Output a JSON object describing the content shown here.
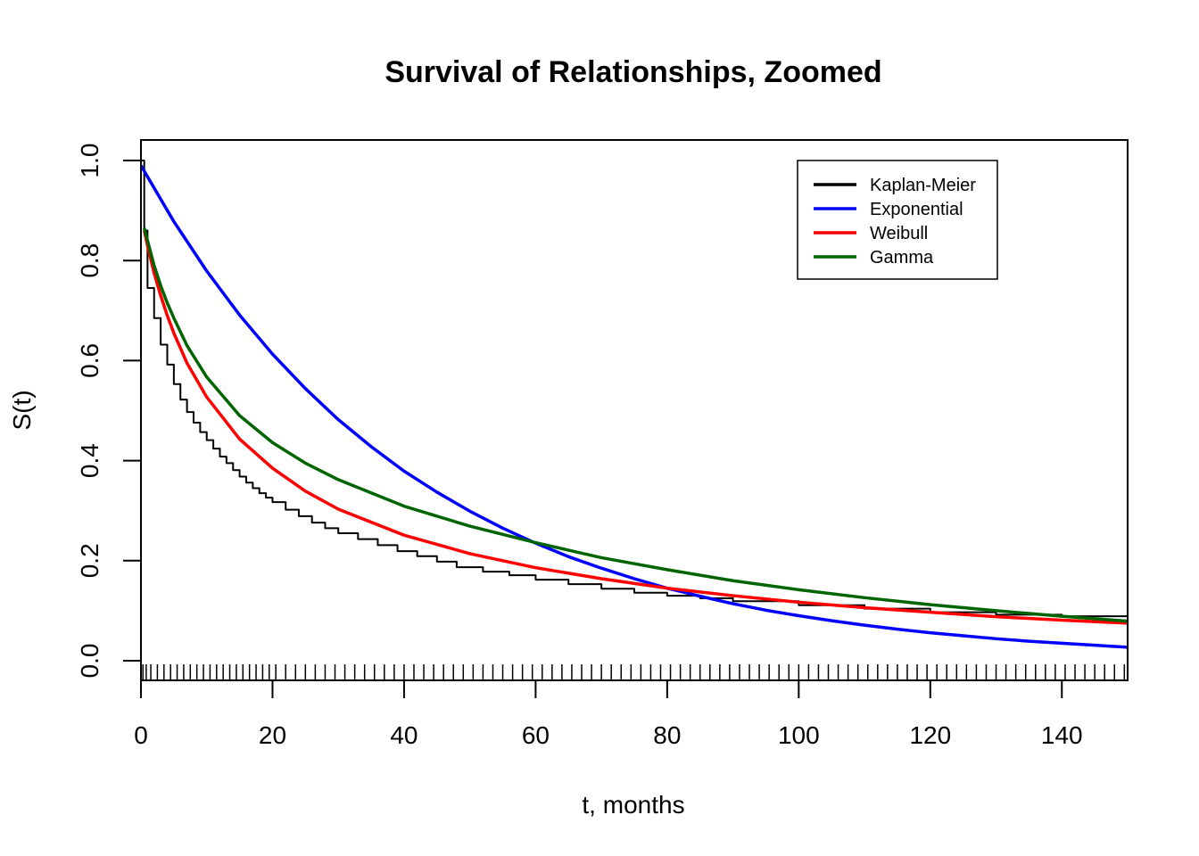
{
  "chart_data": {
    "type": "line",
    "title": "Survival of Relationships, Zoomed",
    "xlabel": "t, months",
    "ylabel": "S(t)",
    "xlim": [
      0,
      150
    ],
    "ylim": [
      0,
      1.0
    ],
    "x_ticks": [
      0,
      20,
      40,
      60,
      80,
      100,
      120,
      140
    ],
    "y_ticks": [
      0.0,
      0.2,
      0.4,
      0.6,
      0.8,
      1.0
    ],
    "x_tick_labels": [
      "0",
      "20",
      "40",
      "60",
      "80",
      "100",
      "120",
      "140"
    ],
    "y_tick_labels": [
      "0.0",
      "0.2",
      "0.4",
      "0.6",
      "0.8",
      "1.0"
    ],
    "grid": false,
    "legend_position": "top-right",
    "rug": true,
    "series": [
      {
        "name": "Kaplan-Meier",
        "color": "#000000",
        "style": "step",
        "x": [
          0,
          0.5,
          1,
          2,
          3,
          4,
          5,
          6,
          7,
          8,
          9,
          10,
          11,
          12,
          13,
          14,
          15,
          16,
          17,
          18,
          19,
          20,
          22,
          24,
          26,
          28,
          30,
          33,
          36,
          39,
          42,
          45,
          48,
          52,
          56,
          60,
          65,
          70,
          75,
          80,
          85,
          90,
          100,
          110,
          120,
          130,
          140,
          150
        ],
        "y": [
          1.0,
          0.86,
          0.745,
          0.685,
          0.632,
          0.592,
          0.553,
          0.522,
          0.497,
          0.476,
          0.457,
          0.441,
          0.424,
          0.408,
          0.395,
          0.381,
          0.368,
          0.356,
          0.345,
          0.335,
          0.326,
          0.317,
          0.302,
          0.289,
          0.276,
          0.265,
          0.255,
          0.243,
          0.231,
          0.219,
          0.209,
          0.198,
          0.187,
          0.178,
          0.171,
          0.162,
          0.153,
          0.144,
          0.136,
          0.13,
          0.125,
          0.119,
          0.111,
          0.104,
          0.097,
          0.092,
          0.089,
          0.087
        ]
      },
      {
        "name": "Exponential",
        "color": "#0000ff",
        "style": "line",
        "x": [
          0,
          5,
          10,
          15,
          20,
          25,
          30,
          35,
          40,
          45,
          50,
          55,
          60,
          65,
          70,
          75,
          80,
          85,
          90,
          95,
          100,
          105,
          110,
          115,
          120,
          125,
          130,
          135,
          140,
          145,
          150
        ],
        "y": [
          0.99,
          0.878,
          0.779,
          0.691,
          0.613,
          0.544,
          0.482,
          0.428,
          0.379,
          0.337,
          0.299,
          0.265,
          0.235,
          0.208,
          0.185,
          0.164,
          0.145,
          0.129,
          0.114,
          0.101,
          0.09,
          0.08,
          0.071,
          0.063,
          0.056,
          0.05,
          0.044,
          0.039,
          0.035,
          0.031,
          0.027
        ]
      },
      {
        "name": "Weibull",
        "color": "#ff0000",
        "style": "line",
        "x": [
          0.5,
          1,
          2,
          3,
          4,
          5,
          7,
          10,
          15,
          20,
          25,
          30,
          40,
          50,
          60,
          70,
          80,
          90,
          100,
          110,
          120,
          130,
          140,
          150
        ],
        "y": [
          0.86,
          0.83,
          0.775,
          0.73,
          0.69,
          0.655,
          0.595,
          0.527,
          0.443,
          0.385,
          0.339,
          0.303,
          0.251,
          0.214,
          0.186,
          0.164,
          0.145,
          0.13,
          0.117,
          0.106,
          0.097,
          0.088,
          0.081,
          0.075
        ]
      },
      {
        "name": "Gamma",
        "color": "#006400",
        "style": "line",
        "x": [
          0.5,
          1,
          2,
          3,
          4,
          5,
          7,
          10,
          15,
          20,
          25,
          30,
          40,
          50,
          60,
          70,
          80,
          90,
          100,
          110,
          120,
          130,
          140,
          150
        ],
        "y": [
          0.865,
          0.84,
          0.79,
          0.75,
          0.715,
          0.685,
          0.63,
          0.567,
          0.49,
          0.436,
          0.395,
          0.362,
          0.309,
          0.269,
          0.236,
          0.206,
          0.182,
          0.16,
          0.142,
          0.126,
          0.112,
          0.1,
          0.089,
          0.079
        ]
      }
    ],
    "rug_x": [
      0.3,
      0.8,
      1.5,
      2.5,
      3.5,
      4.5,
      5.5,
      6.5,
      7.5,
      8.5,
      9.5,
      10.5,
      11.5,
      12.5,
      13.5,
      14.5,
      15.5,
      16.5,
      17.5,
      18.5,
      19.5,
      20.5,
      22,
      23.5,
      25,
      26.5,
      28,
      29.5,
      31,
      32.5,
      34,
      35.5,
      37,
      38.5,
      40,
      41.5,
      43,
      44.5,
      46,
      47.5,
      49,
      50.5,
      52,
      53.5,
      55,
      56.5,
      58,
      59.5,
      61,
      62.5,
      64,
      65.5,
      67,
      68.5,
      70,
      71.5,
      73,
      74.5,
      76,
      77.5,
      79,
      80.5,
      82,
      83.5,
      85,
      86.5,
      88,
      89.5,
      91,
      92.5,
      94,
      95.5,
      97,
      98.5,
      100,
      101.5,
      103,
      104.5,
      106,
      107.5,
      109,
      110.5,
      112,
      113.5,
      115,
      116.5,
      118,
      119.5,
      121,
      122.5,
      124,
      125.5,
      127,
      128.5,
      130,
      131.5,
      133,
      134.5,
      136,
      137.5,
      139,
      140.5,
      142,
      143.5,
      145,
      146.5,
      148,
      149.5
    ]
  }
}
